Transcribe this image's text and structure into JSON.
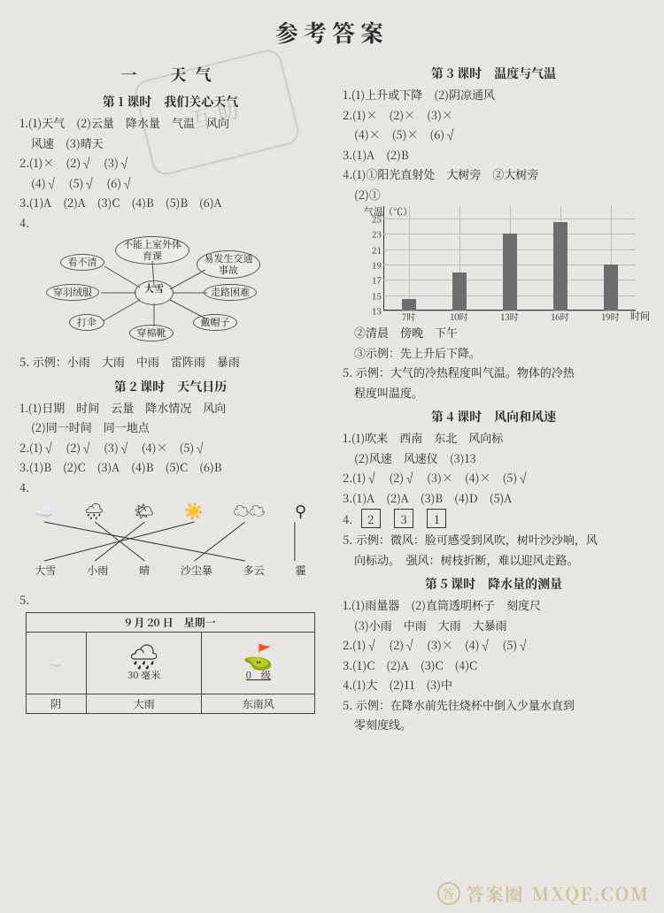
{
  "title": "参考答案",
  "watermark": {
    "site": "MXQE.COM",
    "brand": "答案圈"
  },
  "stamp": "互助",
  "left": {
    "section": "一　天气",
    "lesson1": {
      "title": "第 1 课时　我们关心天气",
      "q1_a": "1.(1)天气　(2)云量　降水量　气温　风向",
      "q1_b": "　风速　(3)晴天",
      "q2_a": "2.(1)×　(2)√　(3)√",
      "q2_b": "　(4)√　(5)√　(6)√",
      "q3": "3.(1)A　(2)A　(3)C　(4)B　(5)B　(6)A",
      "q4_label": "4.",
      "mind": {
        "center": "大雪",
        "nodes": [
          "不能上室外体育课",
          "易发生交通事故",
          "走路困难",
          "戴帽子",
          "穿棉靴",
          "打伞",
          "穿羽绒服",
          "看不清"
        ]
      },
      "q5": "5. 示例：小雨　大雨　中雨　雷阵雨　暴雨"
    },
    "lesson2": {
      "title": "第 2 课时　天气日历",
      "q1_a": "1.(1)日期　时间　云量　降水情况　风向",
      "q1_b": "　(2)同一时间　同一地点",
      "q2": "2.(1)√　(2)√　(3)√　(4)×　(5)√",
      "q3": "3.(1)B　(2)C　(3)A　(4)B　(5)C　(6)B",
      "q4_label": "4.",
      "match": {
        "icons": [
          "☁️",
          "🌧",
          "🌤",
          "☀️",
          "☁︎☁︎",
          "⚲"
        ],
        "labels": [
          "大雪",
          "小雨",
          "晴",
          "沙尘暴",
          "多云",
          "霾"
        ],
        "lines": [
          [
            0,
            4
          ],
          [
            1,
            2
          ],
          [
            2,
            1
          ],
          [
            3,
            0
          ],
          [
            4,
            3
          ],
          [
            5,
            5
          ]
        ]
      },
      "q5_label": "5.",
      "table": {
        "header": "9 月 20 日　星期一",
        "row1": [
          "☁️",
          "🌧",
          "⛳"
        ],
        "row2_center": "30 毫米",
        "row2_right": "0　级",
        "row3": [
          "阴",
          "大雨",
          "东南风"
        ]
      }
    }
  },
  "right": {
    "lesson3": {
      "title": "第 3 课时　温度与气温",
      "q1": "1.(1)上升或下降　(2)阴凉通风",
      "q2_a": "2.(1)×　(2)×　(3)×",
      "q2_b": "　(4)×　(5)×　(6)√",
      "q3": "3.(1)A　(2)B",
      "q4_a": "4.(1)①阳光直射处　大树旁　②大树旁",
      "q4_b_label": "　(2)①",
      "chart": {
        "ylabel": "气温（℃）",
        "xlabel": "时间",
        "yticks": [
          13,
          15,
          17,
          19,
          21,
          23,
          25
        ],
        "ylim": [
          13,
          25
        ],
        "xticks": [
          "7时",
          "10时",
          "13时",
          "16时",
          "19时"
        ],
        "bars": [
          14.5,
          18,
          23,
          24.5,
          19
        ],
        "bar_color": "#6d6d6d",
        "grid_color": "#bbbbbb"
      },
      "q4_c": "　②清晨　傍晚　下午",
      "q4_d": "　③示例：先上升后下降。",
      "q5_a": "5. 示例：大气的冷热程度叫气温。物体的冷热",
      "q5_b": "　程度叫温度。"
    },
    "lesson4": {
      "title": "第 4 课时　风向和风速",
      "q1_a": "1.(1)吹来　西南　东北　风向标",
      "q1_b": "　(2)风速　风速仪　(3)13",
      "q2": "2.(1)√　(2)√　(3)×　(4)×　(5)√",
      "q3": "3.(1)A　(2)A　(3)B　(4)D　(5)A",
      "q4_label": "4.",
      "q4_boxes": [
        "2",
        "3",
        "1"
      ],
      "q5_a": "5. 示例：微风：脸可感受到风吹，树叶沙沙响，风",
      "q5_b": "　向标动。　强风：树枝折断，难以迎风走路。"
    },
    "lesson5": {
      "title": "第 5 课时　降水量的测量",
      "q1_a": "1.(1)雨量器　(2)直筒透明杯子　刻度尺",
      "q1_b": "　(3)小雨　中雨　大雨　大暴雨",
      "q2": "2.(1)√　(2)√　(3)×　(4)√　(5)√",
      "q3": "3.(1)C　(2)A　(3)C　(4)C",
      "q4": "4.(1)大　(2)11　(3)中",
      "q5_a": "5. 示例：在降水前先往烧杯中倒入少量水直到",
      "q5_b": "　零刻度线。"
    }
  }
}
